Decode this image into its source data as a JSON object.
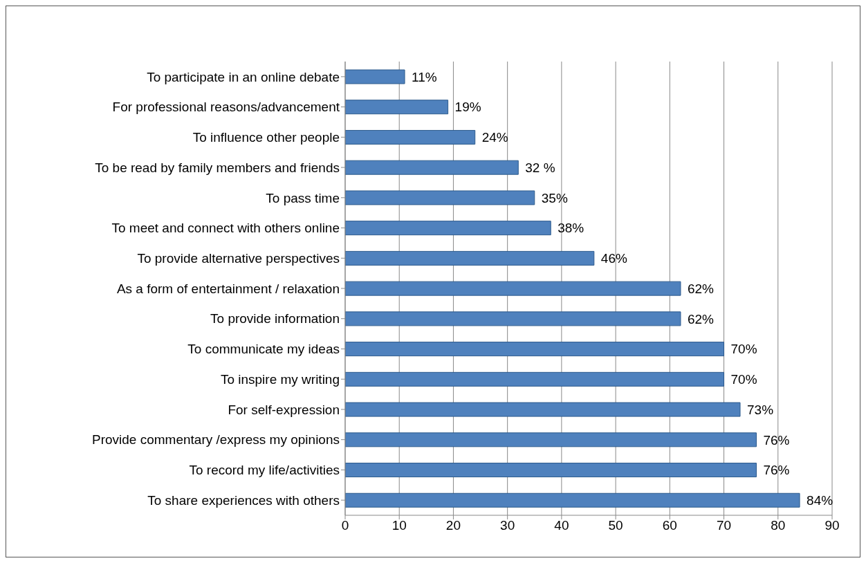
{
  "chart_data": {
    "type": "bar",
    "orientation": "horizontal",
    "categories": [
      "To participate in an online debate",
      "For professional reasons/advancement",
      "To influence other people",
      "To be read by family members and friends",
      "To pass time",
      "To meet and connect with others online",
      "To provide alternative perspectives",
      "As a form of entertainment / relaxation",
      "To provide information",
      "To communicate my ideas",
      "To inspire my writing",
      "For self-expression",
      "Provide commentary /express my opinions",
      "To record my life/activities",
      "To share experiences with others"
    ],
    "values": [
      11,
      19,
      24,
      32,
      35,
      38,
      46,
      62,
      62,
      70,
      70,
      73,
      76,
      76,
      84
    ],
    "value_labels": [
      "11%",
      "19%",
      "24%",
      "32 %",
      "35%",
      "38%",
      "46%",
      "62%",
      "62%",
      "70%",
      "70%",
      "73%",
      "76%",
      "76%",
      "84%"
    ],
    "color": "#4f81bd",
    "xlim": [
      0,
      90
    ],
    "xticks": [
      0,
      10,
      20,
      30,
      40,
      50,
      60,
      70,
      80,
      90
    ],
    "grid": "x"
  }
}
